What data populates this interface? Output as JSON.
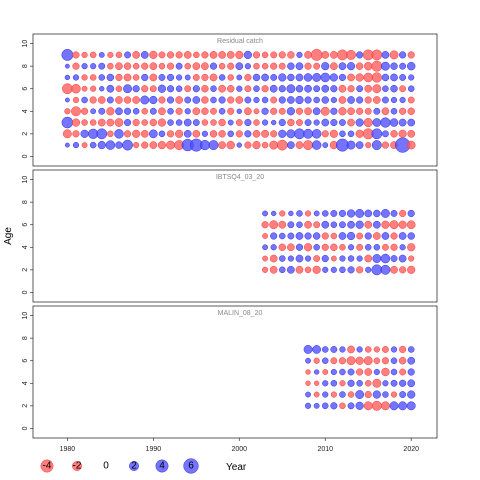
{
  "chart_data": {
    "type": "bubble",
    "ylabel": "Age",
    "xlabel": "",
    "xlim": [
      1976,
      2023
    ],
    "xticks": [
      1980,
      1990,
      2000,
      2010,
      2020
    ],
    "ylim": [
      -0.5,
      10.5
    ],
    "yticks": [
      0,
      2,
      4,
      6,
      8,
      10
    ],
    "colors": {
      "positive": "#4d4dff",
      "negative": "#ff5a5a"
    },
    "legend": {
      "values": [
        -4,
        -2,
        0,
        2,
        4,
        6
      ],
      "labels": [
        "-4",
        "-2",
        "0",
        "2",
        "4",
        "6"
      ],
      "xlabel": "Year"
    },
    "panels": [
      {
        "title": "Residual catch",
        "years": [
          1980,
          2020
        ],
        "ages": [
          1,
          9
        ],
        "residuals": [
          [
            0.2,
            0.5,
            -0.4,
            0.6,
            1.2,
            1.8,
            0.9,
            2.5,
            -0.5,
            -0.8,
            -1.0,
            -1.2,
            -1.5,
            -2.0,
            3.5,
            4.0,
            2.2,
            2.0,
            -1.0,
            -1.3,
            0.3,
            -0.8,
            -1.2,
            -0.6,
            -1.5,
            -2.5,
            1.0,
            -1.0,
            -2.0,
            1.8,
            0.4,
            -1.2,
            4.0,
            1.5,
            1.0,
            -0.5,
            2.0,
            -0.8,
            -1.0,
            6.0,
            -1.4
          ],
          [
            -1.5,
            -0.8,
            1.2,
            2.2,
            2.5,
            -0.6,
            1.8,
            -0.8,
            -1.2,
            -1.0,
            1.4,
            0.6,
            -0.8,
            -1.2,
            1.0,
            -1.0,
            0.5,
            -0.9,
            -0.9,
            0.6,
            -0.8,
            0.8,
            -1.0,
            -1.1,
            -0.8,
            1.2,
            1.5,
            2.5,
            2.0,
            1.8,
            -0.8,
            -1.2,
            0.6,
            0.6,
            -1.2,
            -2.6,
            2.5,
            0.7,
            -0.9,
            -1.2,
            -1.0
          ],
          [
            3.0,
            -1.2,
            -0.6,
            -0.6,
            -1.0,
            -1.0,
            -1.4,
            0.8,
            -0.8,
            -0.6,
            -0.9,
            -1.2,
            0.6,
            0.6,
            1.0,
            0.7,
            -0.6,
            -0.6,
            -0.9,
            0.4,
            -0.7,
            0.8,
            -0.6,
            0.5,
            0.3,
            0.8,
            -0.9,
            -0.7,
            0.7,
            0.5,
            1.0,
            0.8,
            0.7,
            -1.0,
            1.2,
            -1.6,
            1.4,
            2.2,
            1.3,
            1.0,
            1.0
          ],
          [
            -0.5,
            -2.0,
            -0.8,
            0.4,
            0.7,
            -1.2,
            1.0,
            0.8,
            0.6,
            -0.6,
            0.7,
            -1.0,
            0.6,
            -0.8,
            0.5,
            -1.0,
            -0.9,
            -0.7,
            0.6,
            -0.8,
            0.3,
            -1.0,
            -0.4,
            0.8,
            -0.8,
            -0.7,
            1.2,
            -0.8,
            -1.0,
            1.0,
            -1.5,
            0.8,
            -1.2,
            -1.0,
            -0.8,
            -0.7,
            0.7,
            -1.0,
            0.6,
            -0.8,
            -0.9
          ],
          [
            0.2,
            -0.5,
            0.6,
            -0.8,
            -1.0,
            0.7,
            -1.0,
            -0.9,
            -1.0,
            1.5,
            1.2,
            -0.8,
            0.8,
            -1.0,
            0.7,
            1.0,
            -0.9,
            0.6,
            0.8,
            -0.8,
            -1.0,
            0.7,
            0.5,
            0.6,
            -0.7,
            0.8,
            1.0,
            1.2,
            0.8,
            0.6,
            0.9,
            0.5,
            -1.0,
            1.0,
            0.8,
            -0.8,
            -1.0,
            0.7,
            0.5,
            0.5,
            -0.7
          ],
          [
            -2.5,
            -1.8,
            -0.4,
            -0.5,
            0.3,
            1.0,
            -0.6,
            1.5,
            0.8,
            -0.8,
            -0.7,
            1.2,
            0.8,
            0.6,
            -0.7,
            0.8,
            -0.9,
            0.6,
            -1.0,
            -0.9,
            0.5,
            -0.7,
            0.6,
            -0.8,
            1.0,
            0.8,
            1.5,
            0.9,
            1.0,
            0.7,
            1.0,
            0.8,
            -1.0,
            -0.8,
            0.7,
            -1.0,
            -1.5,
            0.6,
            0.9,
            -0.7,
            0.6
          ],
          [
            0.3,
            0.5,
            -0.5,
            -0.6,
            0.6,
            0.9,
            -0.8,
            -1.0,
            -0.6,
            0.8,
            -1.0,
            0.7,
            0.8,
            0.5,
            0.4,
            -0.7,
            -0.8,
            -1.0,
            0.6,
            -0.6,
            0.4,
            -0.8,
            0.9,
            1.0,
            0.7,
            1.2,
            0.9,
            1.0,
            1.3,
            1.5,
            1.8,
            1.2,
            0.8,
            -1.0,
            -1.2,
            -1.8,
            -2.2,
            0.9,
            1.0,
            0.7,
            0.5
          ],
          [
            0.2,
            -0.8,
            0.5,
            0.5,
            0.7,
            -0.6,
            -1.0,
            -0.9,
            -0.6,
            -0.8,
            -1.0,
            -0.6,
            -0.8,
            0.7,
            -0.6,
            -1.0,
            -1.0,
            0.8,
            -0.6,
            -0.8,
            1.0,
            0.5,
            -0.6,
            -0.6,
            -0.8,
            -0.7,
            0.9,
            1.0,
            -0.8,
            -0.7,
            1.2,
            -1.0,
            1.0,
            1.2,
            -0.9,
            -1.3,
            -2.6,
            1.5,
            0.9,
            0.7,
            1.3
          ],
          [
            3.2,
            -0.8,
            -0.5,
            -0.6,
            0.4,
            -0.5,
            -0.6,
            0.7,
            -1.0,
            1.0,
            -1.2,
            -0.7,
            -0.8,
            -0.8,
            -1.0,
            -0.6,
            -0.8,
            -1.0,
            -1.0,
            -1.0,
            -1.2,
            1.2,
            -0.8,
            -0.6,
            -0.7,
            -0.8,
            -0.9,
            0.5,
            -1.0,
            -3.2,
            -1.0,
            -1.0,
            -2.5,
            -2.0,
            0.8,
            -2.5,
            -2.5,
            1.0,
            -1.5,
            0.8,
            -0.8
          ]
        ]
      },
      {
        "title": "IBTSQ4_03_20",
        "years": [
          2003,
          2020
        ],
        "ages": [
          2,
          7
        ],
        "residuals": [
          [
            -0.5,
            -1.0,
            0.6,
            1.0,
            -1.0,
            -0.6,
            -1.2,
            0.5,
            0.5,
            0.6,
            0.8,
            -0.8,
            0.5,
            2.5,
            2.0,
            -1.0,
            -0.8,
            -1.2
          ],
          [
            -0.4,
            -1.0,
            0.6,
            0.5,
            1.0,
            0.5,
            -0.7,
            0.8,
            -0.4,
            0.5,
            0.6,
            0.5,
            -1.0,
            1.5,
            1.8,
            0.7,
            1.0,
            -0.5
          ],
          [
            0.4,
            0.5,
            -0.9,
            -1.0,
            0.8,
            -1.2,
            0.6,
            -0.8,
            -0.9,
            -0.6,
            0.5,
            -0.7,
            0.6,
            0.6,
            -0.7,
            -0.8,
            0.5,
            -1.2
          ],
          [
            -0.4,
            0.8,
            0.6,
            0.7,
            1.0,
            0.8,
            0.9,
            -0.8,
            -0.6,
            1.0,
            1.2,
            -0.7,
            0.8,
            -1.0,
            1.0,
            -0.8,
            1.0,
            0.9
          ],
          [
            -0.8,
            -1.5,
            -1.0,
            0.7,
            0.6,
            -1.0,
            -0.7,
            1.0,
            0.6,
            0.7,
            1.0,
            1.2,
            -1.0,
            1.0,
            -1.2,
            -1.5,
            -1.2,
            -1.4
          ],
          [
            0.4,
            0.3,
            -0.5,
            0.3,
            0.6,
            -0.5,
            0.4,
            0.6,
            0.7,
            0.8,
            1.2,
            1.5,
            1.0,
            0.9,
            1.5,
            0.7,
            -0.8,
            0.8
          ]
        ]
      },
      {
        "title": "MALIN_08_20",
        "years": [
          2008,
          2020
        ],
        "ages": [
          2,
          7
        ],
        "residuals": [
          [
            0.5,
            0.4,
            0.6,
            0.8,
            -0.6,
            0.7,
            1.2,
            -1.5,
            -2.0,
            -1.5,
            1.5,
            1.5,
            1.5
          ],
          [
            0.4,
            -0.4,
            0.5,
            -0.5,
            0.6,
            -0.6,
            1.5,
            -0.8,
            1.2,
            0.6,
            -0.5,
            0.7,
            1.2
          ],
          [
            -0.3,
            -0.3,
            0.5,
            0.6,
            -0.5,
            0.8,
            0.6,
            -0.6,
            -1.5,
            0.5,
            0.7,
            0.8,
            1.0
          ],
          [
            -0.3,
            0.3,
            -0.4,
            0.5,
            0.6,
            0.7,
            -0.8,
            -1.0,
            0.5,
            -1.3,
            0.6,
            -0.7,
            0.8
          ],
          [
            0.4,
            -0.5,
            0.6,
            -0.7,
            -0.8,
            -1.5,
            -1.2,
            -1.5,
            -0.6,
            -0.8,
            0.6,
            -0.9,
            1.0
          ],
          [
            1.5,
            1.4,
            0.6,
            0.7,
            0.5,
            -1.0,
            0.5,
            -0.6,
            -0.5,
            -0.7,
            0.5,
            -0.8,
            0.6
          ]
        ]
      }
    ]
  }
}
